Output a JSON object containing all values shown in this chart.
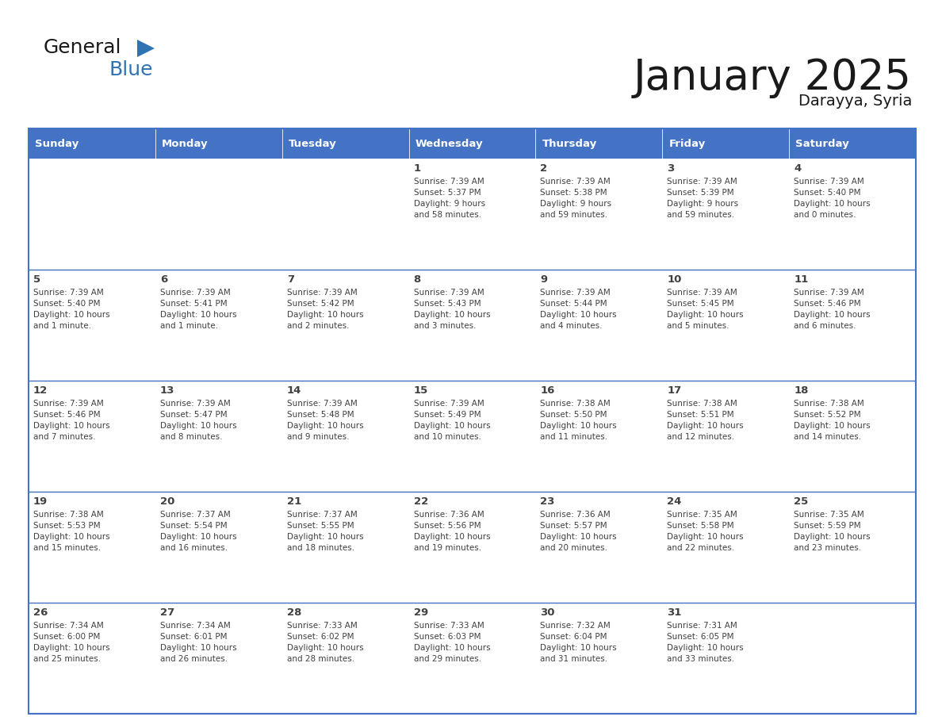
{
  "title": "January 2025",
  "subtitle": "Darayya, Syria",
  "header_color": "#4472C4",
  "header_text_color": "#FFFFFF",
  "cell_bg_color": "#FFFFFF",
  "row_separator_color": "#4472C4",
  "border_color": "#4472C4",
  "text_color": "#404040",
  "days_of_week": [
    "Sunday",
    "Monday",
    "Tuesday",
    "Wednesday",
    "Thursday",
    "Friday",
    "Saturday"
  ],
  "weeks": [
    [
      {
        "day": "",
        "info": ""
      },
      {
        "day": "",
        "info": ""
      },
      {
        "day": "",
        "info": ""
      },
      {
        "day": "1",
        "info": "Sunrise: 7:39 AM\nSunset: 5:37 PM\nDaylight: 9 hours\nand 58 minutes."
      },
      {
        "day": "2",
        "info": "Sunrise: 7:39 AM\nSunset: 5:38 PM\nDaylight: 9 hours\nand 59 minutes."
      },
      {
        "day": "3",
        "info": "Sunrise: 7:39 AM\nSunset: 5:39 PM\nDaylight: 9 hours\nand 59 minutes."
      },
      {
        "day": "4",
        "info": "Sunrise: 7:39 AM\nSunset: 5:40 PM\nDaylight: 10 hours\nand 0 minutes."
      }
    ],
    [
      {
        "day": "5",
        "info": "Sunrise: 7:39 AM\nSunset: 5:40 PM\nDaylight: 10 hours\nand 1 minute."
      },
      {
        "day": "6",
        "info": "Sunrise: 7:39 AM\nSunset: 5:41 PM\nDaylight: 10 hours\nand 1 minute."
      },
      {
        "day": "7",
        "info": "Sunrise: 7:39 AM\nSunset: 5:42 PM\nDaylight: 10 hours\nand 2 minutes."
      },
      {
        "day": "8",
        "info": "Sunrise: 7:39 AM\nSunset: 5:43 PM\nDaylight: 10 hours\nand 3 minutes."
      },
      {
        "day": "9",
        "info": "Sunrise: 7:39 AM\nSunset: 5:44 PM\nDaylight: 10 hours\nand 4 minutes."
      },
      {
        "day": "10",
        "info": "Sunrise: 7:39 AM\nSunset: 5:45 PM\nDaylight: 10 hours\nand 5 minutes."
      },
      {
        "day": "11",
        "info": "Sunrise: 7:39 AM\nSunset: 5:46 PM\nDaylight: 10 hours\nand 6 minutes."
      }
    ],
    [
      {
        "day": "12",
        "info": "Sunrise: 7:39 AM\nSunset: 5:46 PM\nDaylight: 10 hours\nand 7 minutes."
      },
      {
        "day": "13",
        "info": "Sunrise: 7:39 AM\nSunset: 5:47 PM\nDaylight: 10 hours\nand 8 minutes."
      },
      {
        "day": "14",
        "info": "Sunrise: 7:39 AM\nSunset: 5:48 PM\nDaylight: 10 hours\nand 9 minutes."
      },
      {
        "day": "15",
        "info": "Sunrise: 7:39 AM\nSunset: 5:49 PM\nDaylight: 10 hours\nand 10 minutes."
      },
      {
        "day": "16",
        "info": "Sunrise: 7:38 AM\nSunset: 5:50 PM\nDaylight: 10 hours\nand 11 minutes."
      },
      {
        "day": "17",
        "info": "Sunrise: 7:38 AM\nSunset: 5:51 PM\nDaylight: 10 hours\nand 12 minutes."
      },
      {
        "day": "18",
        "info": "Sunrise: 7:38 AM\nSunset: 5:52 PM\nDaylight: 10 hours\nand 14 minutes."
      }
    ],
    [
      {
        "day": "19",
        "info": "Sunrise: 7:38 AM\nSunset: 5:53 PM\nDaylight: 10 hours\nand 15 minutes."
      },
      {
        "day": "20",
        "info": "Sunrise: 7:37 AM\nSunset: 5:54 PM\nDaylight: 10 hours\nand 16 minutes."
      },
      {
        "day": "21",
        "info": "Sunrise: 7:37 AM\nSunset: 5:55 PM\nDaylight: 10 hours\nand 18 minutes."
      },
      {
        "day": "22",
        "info": "Sunrise: 7:36 AM\nSunset: 5:56 PM\nDaylight: 10 hours\nand 19 minutes."
      },
      {
        "day": "23",
        "info": "Sunrise: 7:36 AM\nSunset: 5:57 PM\nDaylight: 10 hours\nand 20 minutes."
      },
      {
        "day": "24",
        "info": "Sunrise: 7:35 AM\nSunset: 5:58 PM\nDaylight: 10 hours\nand 22 minutes."
      },
      {
        "day": "25",
        "info": "Sunrise: 7:35 AM\nSunset: 5:59 PM\nDaylight: 10 hours\nand 23 minutes."
      }
    ],
    [
      {
        "day": "26",
        "info": "Sunrise: 7:34 AM\nSunset: 6:00 PM\nDaylight: 10 hours\nand 25 minutes."
      },
      {
        "day": "27",
        "info": "Sunrise: 7:34 AM\nSunset: 6:01 PM\nDaylight: 10 hours\nand 26 minutes."
      },
      {
        "day": "28",
        "info": "Sunrise: 7:33 AM\nSunset: 6:02 PM\nDaylight: 10 hours\nand 28 minutes."
      },
      {
        "day": "29",
        "info": "Sunrise: 7:33 AM\nSunset: 6:03 PM\nDaylight: 10 hours\nand 29 minutes."
      },
      {
        "day": "30",
        "info": "Sunrise: 7:32 AM\nSunset: 6:04 PM\nDaylight: 10 hours\nand 31 minutes."
      },
      {
        "day": "31",
        "info": "Sunrise: 7:31 AM\nSunset: 6:05 PM\nDaylight: 10 hours\nand 33 minutes."
      },
      {
        "day": "",
        "info": ""
      }
    ]
  ],
  "logo_general_color": "#1A1A1A",
  "logo_blue_color": "#2E74B5",
  "logo_triangle_color": "#2E74B5"
}
